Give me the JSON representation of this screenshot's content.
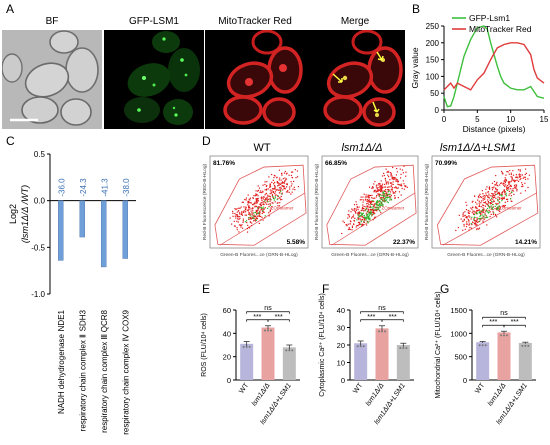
{
  "panels": {
    "A": {
      "letter": "A",
      "titles": [
        "BF",
        "GFP-LSM1",
        "MitoTracker Red",
        "Merge"
      ]
    },
    "B": {
      "letter": "B",
      "chart_data": {
        "type": "line",
        "xlabel": "Distance (pixels)",
        "ylabel": "Gray value",
        "xlim": [
          0,
          15
        ],
        "ylim": [
          0,
          250
        ],
        "xticks": [
          0,
          5,
          10,
          15
        ],
        "yticks": [
          0,
          50,
          100,
          150,
          200,
          250
        ],
        "legend_position": "top-right",
        "series": [
          {
            "name": "GFP-Lsm1",
            "color": "#3cc03c",
            "x": [
              0,
              0.5,
              1,
              1.5,
              2,
              3,
              4,
              5,
              6,
              6.5,
              7,
              8,
              8.5,
              9,
              10,
              11,
              12,
              13,
              14,
              15
            ],
            "y": [
              40,
              10,
              12,
              40,
              80,
              160,
              210,
              245,
              250,
              240,
              200,
              130,
              100,
              80,
              65,
              60,
              60,
              70,
              40,
              35
            ]
          },
          {
            "name": "MitoTracker Red",
            "color": "#e03c3c",
            "x": [
              0,
              1,
              1.5,
              2,
              3,
              4,
              5,
              6,
              7,
              8,
              9,
              10,
              11,
              12,
              13,
              13.5,
              14,
              15
            ],
            "y": [
              60,
              80,
              65,
              80,
              70,
              60,
              90,
              110,
              150,
              185,
              195,
              200,
              200,
              195,
              165,
              120,
              95,
              80
            ]
          }
        ]
      }
    },
    "C": {
      "letter": "C",
      "chart_data": {
        "type": "bar",
        "ylabel_line1": "Log2",
        "ylabel_line2": "(lsm1Δ/Δ /WT)",
        "ylim": [
          -1.0,
          0.5
        ],
        "yticks": [
          "0.5",
          "0.0",
          "-0.5",
          "-1.0"
        ],
        "bar_color": "#6f9fd8",
        "categories": [
          "NDE1",
          "SDH3",
          "QCR8",
          "COX9"
        ],
        "values": [
          -0.64,
          -0.39,
          -0.71,
          -0.62
        ],
        "value_labels": [
          "-36.0",
          "-24.3",
          "-41.3",
          "-38.0"
        ],
        "groups": [
          "NADH dehydrogenase",
          "respiratory chain complex Ⅱ",
          "respiratory chain complex Ⅲ",
          "respiratory chain complex Ⅳ"
        ]
      }
    },
    "D": {
      "letter": "D",
      "plots": [
        {
          "title": "WT",
          "title_italic": false,
          "tl": "81.76%",
          "br": "5.58%"
        },
        {
          "title": "lsm1Δ/Δ",
          "title_italic": true,
          "tl": "66.85%",
          "br": "22.37%"
        },
        {
          "title": "lsm1Δ/Δ+LSM1",
          "title_italic": true,
          "tl": "70.99%",
          "br": "14.21%"
        }
      ],
      "xlabel": "Green-B Fluores...ce (GRN-B-HLog)",
      "ylabel": "Red-B Fluorescence (RED-B-HLog)",
      "gate_label": "ZOmeamer"
    },
    "E": {
      "letter": "E",
      "chart_data": {
        "type": "bar",
        "ylabel": "ROS (FLU/10⁴ cells)",
        "ylim": [
          0,
          60
        ],
        "yticks": [
          "0",
          "20",
          "40",
          "60"
        ],
        "categories": [
          "WT",
          "lsm1Δ/Δ",
          "lsm1Δ/Δ+LSM1"
        ],
        "values": [
          31,
          45,
          28
        ],
        "errors": [
          2,
          1.5,
          2
        ],
        "colors": [
          "#b8b5dc",
          "#e8a3a0",
          "#bdbdbd"
        ],
        "sig": [
          "***",
          "***",
          "ns"
        ]
      }
    },
    "F": {
      "letter": "F",
      "chart_data": {
        "type": "bar",
        "ylabel": "Cytoplasmic Ca²⁺ (FLU/10⁴ cells)",
        "ylim": [
          0,
          40
        ],
        "yticks": [
          "0",
          "10",
          "20",
          "30",
          "40"
        ],
        "categories": [
          "WT",
          "lsm1Δ/Δ",
          "lsm1Δ/Δ+LSM1"
        ],
        "values": [
          21,
          29.5,
          20
        ],
        "errors": [
          1.3,
          1.5,
          1.0
        ],
        "colors": [
          "#b8b5dc",
          "#e8a3a0",
          "#bdbdbd"
        ],
        "sig": [
          "***",
          "***",
          "ns"
        ]
      }
    },
    "G": {
      "letter": "G",
      "chart_data": {
        "type": "bar",
        "ylabel": "Mitochondrial Ca²⁺ (FLU/10⁴ cells)",
        "ylim": [
          0,
          1500
        ],
        "yticks": [
          "0",
          "500",
          "1000",
          "1500"
        ],
        "categories": [
          "WT",
          "lsm1Δ/Δ",
          "lsm1Δ/Δ+LSM1"
        ],
        "values": [
          810,
          1020,
          795
        ],
        "errors": [
          15,
          25,
          15
        ],
        "colors": [
          "#b8b5dc",
          "#e8a3a0",
          "#bdbdbd"
        ],
        "sig": [
          "***",
          "***",
          "ns"
        ]
      }
    }
  }
}
